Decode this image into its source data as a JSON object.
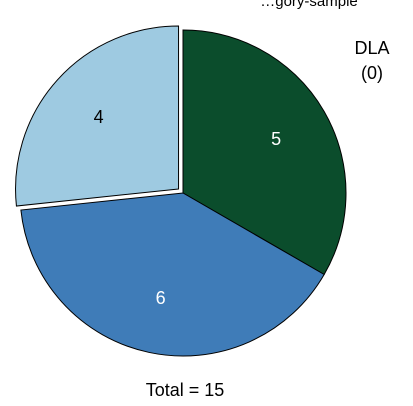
{
  "chart_data": {
    "type": "pie",
    "top_text": "…gory-sample",
    "slices": [
      {
        "label": "DLA",
        "value": 5,
        "color": "#0b4d2c",
        "label_color": "#ffffff"
      },
      {
        "label": "",
        "value": 6,
        "color": "#3f7cb8",
        "label_color": "#ffffff"
      },
      {
        "label": "",
        "value": 4,
        "color": "#9ecae1",
        "label_color": "#000000"
      }
    ],
    "annotation": {
      "line1": "DLA",
      "line2": "(0)"
    },
    "total_text": "Total = 15"
  }
}
